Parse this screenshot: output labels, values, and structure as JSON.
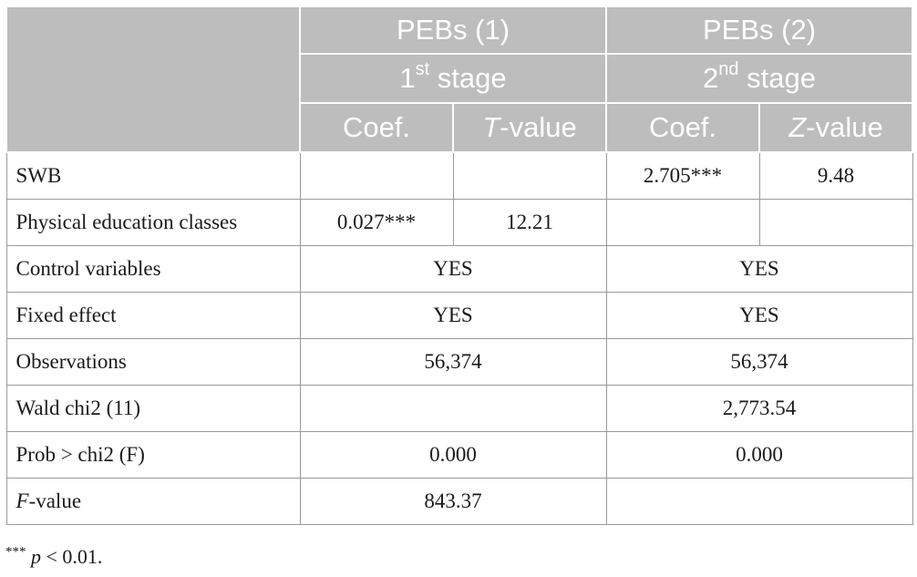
{
  "header": {
    "model1": "PEBs (1)",
    "model2": "PEBs (2)",
    "stage1_num": "1",
    "stage1_sup": "st",
    "stage1_word": " stage",
    "stage2_num": "2",
    "stage2_sup": "nd",
    "stage2_word": " stage",
    "coef1": "Coef.",
    "stat1_letter": "T",
    "stat1_rest": "-value",
    "coef2": "Coef.",
    "stat2_letter": "Z",
    "stat2_rest": "-value"
  },
  "rows": {
    "swb": {
      "label": "SWB",
      "m1_coef": "",
      "m1_stat": "",
      "m2_coef": "2.705***",
      "m2_stat": "9.48"
    },
    "pe": {
      "label": "Physical education classes",
      "m1_coef": "0.027***",
      "m1_stat": "12.21",
      "m2_coef": "",
      "m2_stat": ""
    },
    "controls": {
      "label": "Control variables",
      "m1": "YES",
      "m2": "YES"
    },
    "fixed": {
      "label": "Fixed effect",
      "m1": "YES",
      "m2": "YES"
    },
    "obs": {
      "label": "Observations",
      "m1": "56,374",
      "m2": "56,374"
    },
    "wald": {
      "label": "Wald chi2 (11)",
      "m1": "",
      "m2": "2,773.54"
    },
    "prob": {
      "label": "Prob > chi2 (F)",
      "m1": "0.000",
      "m2": "0.000"
    },
    "fvalue": {
      "label_letter": "F",
      "label_rest": "-value",
      "m1": "843.37",
      "m2": ""
    }
  },
  "footnote": {
    "stars": "***",
    "p": "p",
    "rest": " < 0.01."
  }
}
